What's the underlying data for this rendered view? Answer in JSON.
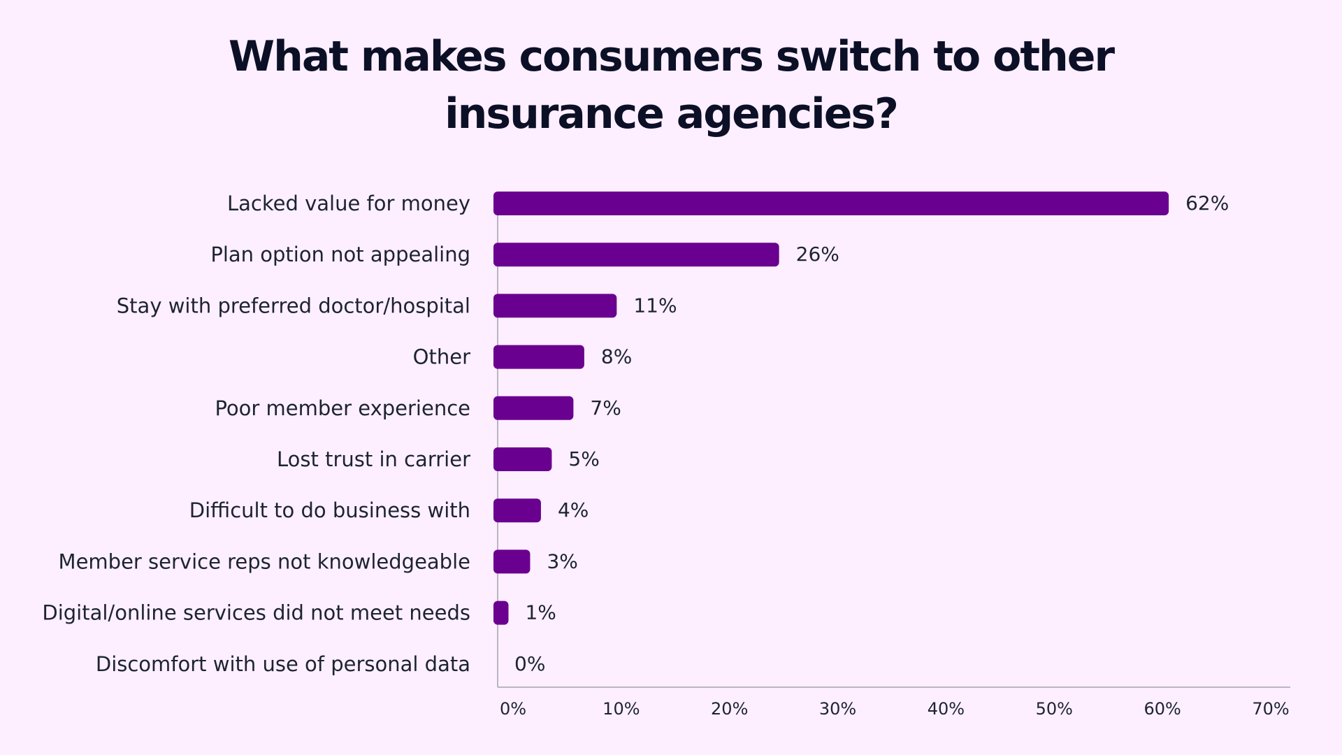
{
  "chart_data": {
    "type": "bar",
    "orientation": "horizontal",
    "title_lines": [
      "What makes consumers switch to other",
      "insurance agencies?"
    ],
    "categories": [
      "Lacked value for money",
      "Plan option not appealing",
      "Stay with preferred doctor/hospital",
      "Other",
      "Poor member experience",
      "Lost trust in carrier",
      "Difficult to do business with",
      "Member service reps not knowledgeable",
      "Digital/online services did not meet needs",
      "Discomfort with use of personal data"
    ],
    "values": [
      62,
      26,
      11,
      8,
      7,
      5,
      4,
      3,
      1,
      0
    ],
    "value_labels": [
      "62%",
      "26%",
      "11%",
      "8%",
      "7%",
      "5%",
      "4%",
      "3%",
      "1%",
      "0%"
    ],
    "xlim": [
      0,
      70
    ],
    "xticks": [
      0,
      10,
      20,
      30,
      40,
      50,
      60,
      70
    ],
    "xtick_labels": [
      "0%",
      "10%",
      "20%",
      "30%",
      "40%",
      "50%",
      "60%",
      "70%"
    ],
    "bar_color": "#6a008f",
    "axis_color": "#b9b6bf",
    "grid": false,
    "legend": "none"
  }
}
